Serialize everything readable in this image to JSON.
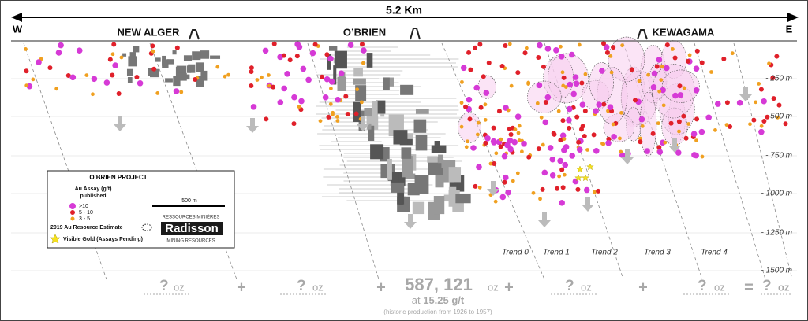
{
  "header": {
    "distance": "5.2 Km",
    "west": "W",
    "east": "E"
  },
  "mines": [
    "NEW ALGER",
    "O’BRIEN",
    "KEWAGAMA"
  ],
  "depth_labels": [
    "- 250 m",
    "- 500 m",
    "- 750 m",
    "- 1000 m",
    "- 1250 m",
    "- 1500 m"
  ],
  "trends": [
    "Trend 0",
    "Trend 1",
    "Trend 2",
    "Trend 3",
    "Trend 4"
  ],
  "legend": {
    "title": "O’BRIEN PROJECT",
    "assay_title": "Au Assay (g/t)",
    "assay_sub": "published",
    "scale": "500 m",
    "classes": [
      ">10",
      "5 - 10",
      "3 - 5"
    ],
    "resource": "2019 Au Resource Estimate",
    "visible_gold": "Visible Gold (Assays Pending)",
    "logo_top": "RESSOURCES MINIÈRES",
    "logo_name": "Radisson",
    "logo_bottom": "MINING RESOURCES"
  },
  "totals": {
    "q1": "?",
    "u1": "oz",
    "p1": "+",
    "q2": "?",
    "u2": "oz",
    "p2": "+",
    "main": "587, 121",
    "u3": "oz",
    "at": "at",
    "grade": "15.25 g/t",
    "note": "(historic production from 1926 to 1957)",
    "p3": "+",
    "q4": "?",
    "u4": "oz",
    "p4": "+",
    "q5": "?",
    "u5": "oz",
    "eq": "=",
    "q6": "?",
    "u6": "oz"
  }
}
